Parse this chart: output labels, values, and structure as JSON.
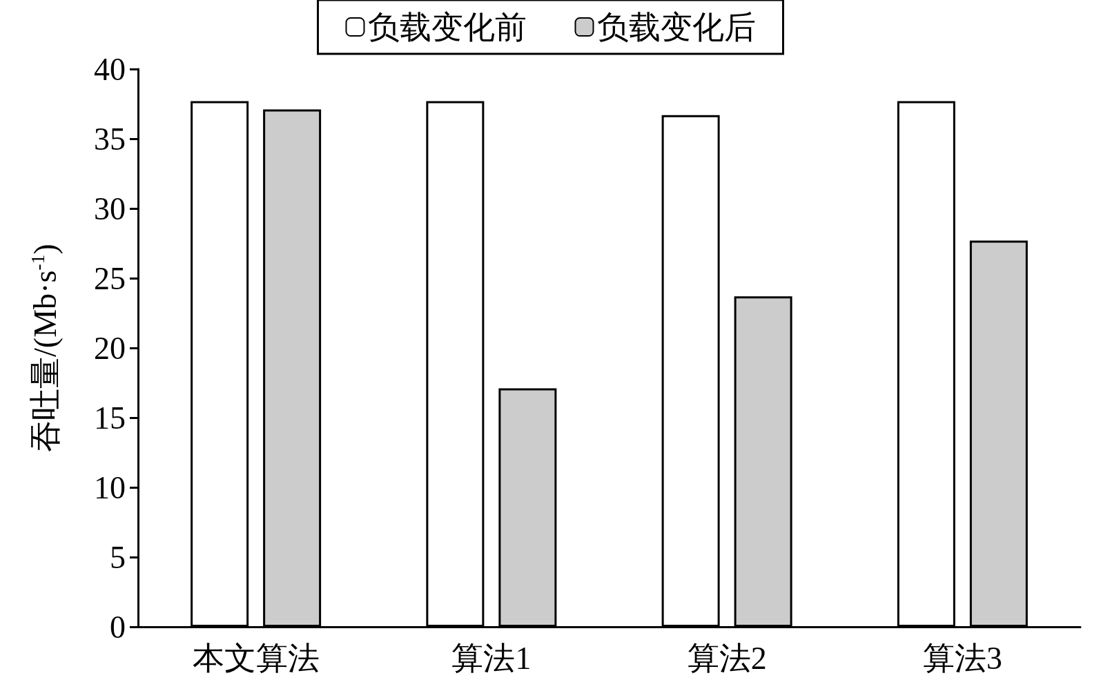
{
  "chart_data": {
    "type": "bar",
    "ylabel": "吞吐量/(Mb·s$^{-1}$)",
    "categories": [
      "本文算法",
      "算法1",
      "算法2",
      "算法3"
    ],
    "series": [
      {
        "name": "负载变化前",
        "color": "#ffffff",
        "values": [
          37.7,
          37.7,
          36.7,
          37.7
        ]
      },
      {
        "name": "负载变化后",
        "color": "#cccccc",
        "values": [
          37.1,
          17.1,
          23.7,
          27.7
        ]
      }
    ],
    "ylim": [
      0,
      40
    ],
    "yticks": [
      0,
      5,
      10,
      15,
      20,
      25,
      30,
      35,
      40
    ],
    "grid": false,
    "legend": "top"
  }
}
